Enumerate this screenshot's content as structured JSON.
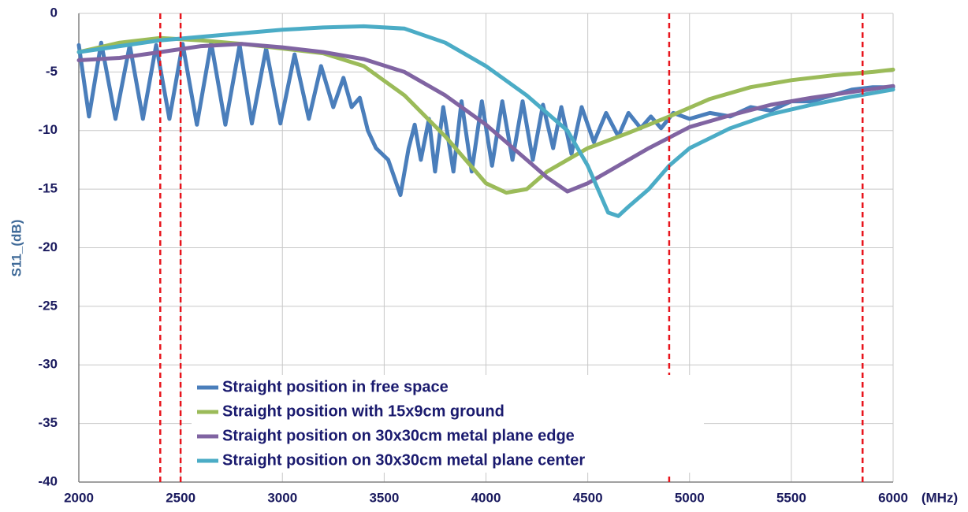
{
  "chart_data": {
    "type": "line",
    "y_label": "S11_(dB)",
    "x_unit": "(MHz)",
    "xlim": [
      2000,
      6000
    ],
    "xticks": [
      2000,
      2500,
      3000,
      3500,
      4000,
      4500,
      5000,
      5500,
      6000
    ],
    "ylim": [
      -40,
      0
    ],
    "yticks": [
      0,
      -5,
      -10,
      -15,
      -20,
      -25,
      -30,
      -35,
      -40
    ],
    "grid": true,
    "legend": "bottom-center",
    "markers": {
      "color": "#e8141c",
      "x": [
        2400,
        2500,
        4900,
        5850
      ]
    },
    "series": [
      {
        "name": "Straight position in free space",
        "color": "#4a7ebb",
        "x": [
          2000,
          2050,
          2110,
          2180,
          2250,
          2315,
          2380,
          2445,
          2510,
          2580,
          2650,
          2720,
          2790,
          2850,
          2920,
          2990,
          3060,
          3130,
          3190,
          3250,
          3300,
          3340,
          3380,
          3420,
          3460,
          3520,
          3580,
          3620,
          3650,
          3680,
          3720,
          3750,
          3790,
          3840,
          3880,
          3930,
          3980,
          4030,
          4080,
          4130,
          4180,
          4230,
          4280,
          4330,
          4370,
          4420,
          4470,
          4530,
          4590,
          4650,
          4700,
          4760,
          4810,
          4860,
          4920,
          5000,
          5100,
          5200,
          5300,
          5400,
          5500,
          5600,
          5700,
          5800,
          5900,
          6000
        ],
        "values": [
          -2.7,
          -8.8,
          -2.5,
          -9.0,
          -2.7,
          -9.0,
          -2.7,
          -9.0,
          -2.6,
          -9.5,
          -2.5,
          -9.5,
          -2.7,
          -9.4,
          -3.0,
          -9.4,
          -3.5,
          -9.0,
          -4.5,
          -8.0,
          -5.5,
          -8.0,
          -7.2,
          -10.0,
          -11.5,
          -12.5,
          -15.5,
          -11.5,
          -9.5,
          -12.5,
          -9.0,
          -13.5,
          -8.0,
          -13.5,
          -7.5,
          -13.5,
          -7.5,
          -13.0,
          -7.5,
          -12.5,
          -7.5,
          -12.5,
          -7.8,
          -11.5,
          -8.0,
          -12.0,
          -8.0,
          -11.0,
          -8.5,
          -10.5,
          -8.5,
          -9.8,
          -8.8,
          -9.8,
          -8.5,
          -9.0,
          -8.5,
          -8.8,
          -8.0,
          -8.3,
          -7.5,
          -7.5,
          -7.0,
          -6.5,
          -6.3,
          -6.3
        ]
      },
      {
        "name": "Straight position with 15x9cm ground",
        "color": "#9bbb59",
        "x": [
          2000,
          2200,
          2400,
          2600,
          2800,
          3000,
          3200,
          3400,
          3600,
          3800,
          4000,
          4100,
          4200,
          4300,
          4500,
          4700,
          4900,
          5100,
          5300,
          5500,
          5700,
          5900,
          6000
        ],
        "values": [
          -3.3,
          -2.5,
          -2.1,
          -2.3,
          -2.6,
          -3.0,
          -3.4,
          -4.5,
          -7.0,
          -10.5,
          -14.5,
          -15.3,
          -15.0,
          -13.5,
          -11.5,
          -10.2,
          -8.8,
          -7.3,
          -6.3,
          -5.7,
          -5.3,
          -5.0,
          -4.8
        ]
      },
      {
        "name": "Straight position on 30x30cm metal plane edge",
        "color": "#8064a2",
        "x": [
          2000,
          2200,
          2400,
          2600,
          2800,
          3000,
          3200,
          3400,
          3600,
          3800,
          4000,
          4200,
          4300,
          4400,
          4500,
          4600,
          4800,
          5000,
          5200,
          5400,
          5600,
          5800,
          6000
        ],
        "values": [
          -4.0,
          -3.8,
          -3.3,
          -2.8,
          -2.6,
          -2.9,
          -3.3,
          -3.9,
          -5.0,
          -7.0,
          -9.5,
          -12.5,
          -14.0,
          -15.2,
          -14.5,
          -13.5,
          -11.5,
          -9.7,
          -8.7,
          -7.8,
          -7.2,
          -6.7,
          -6.2
        ]
      },
      {
        "name": "Straight position on 30x30cm metal plane center",
        "color": "#4bacc6",
        "x": [
          2000,
          2200,
          2400,
          2600,
          2800,
          3000,
          3200,
          3400,
          3600,
          3800,
          4000,
          4200,
          4400,
          4500,
          4600,
          4650,
          4700,
          4800,
          4900,
          5000,
          5200,
          5400,
          5600,
          5800,
          6000
        ],
        "values": [
          -3.3,
          -2.8,
          -2.3,
          -2.0,
          -1.7,
          -1.4,
          -1.2,
          -1.1,
          -1.3,
          -2.5,
          -4.5,
          -7.0,
          -10.0,
          -13.0,
          -17.0,
          -17.3,
          -16.5,
          -15.0,
          -13.0,
          -11.5,
          -9.8,
          -8.6,
          -7.8,
          -7.1,
          -6.5
        ]
      }
    ]
  }
}
